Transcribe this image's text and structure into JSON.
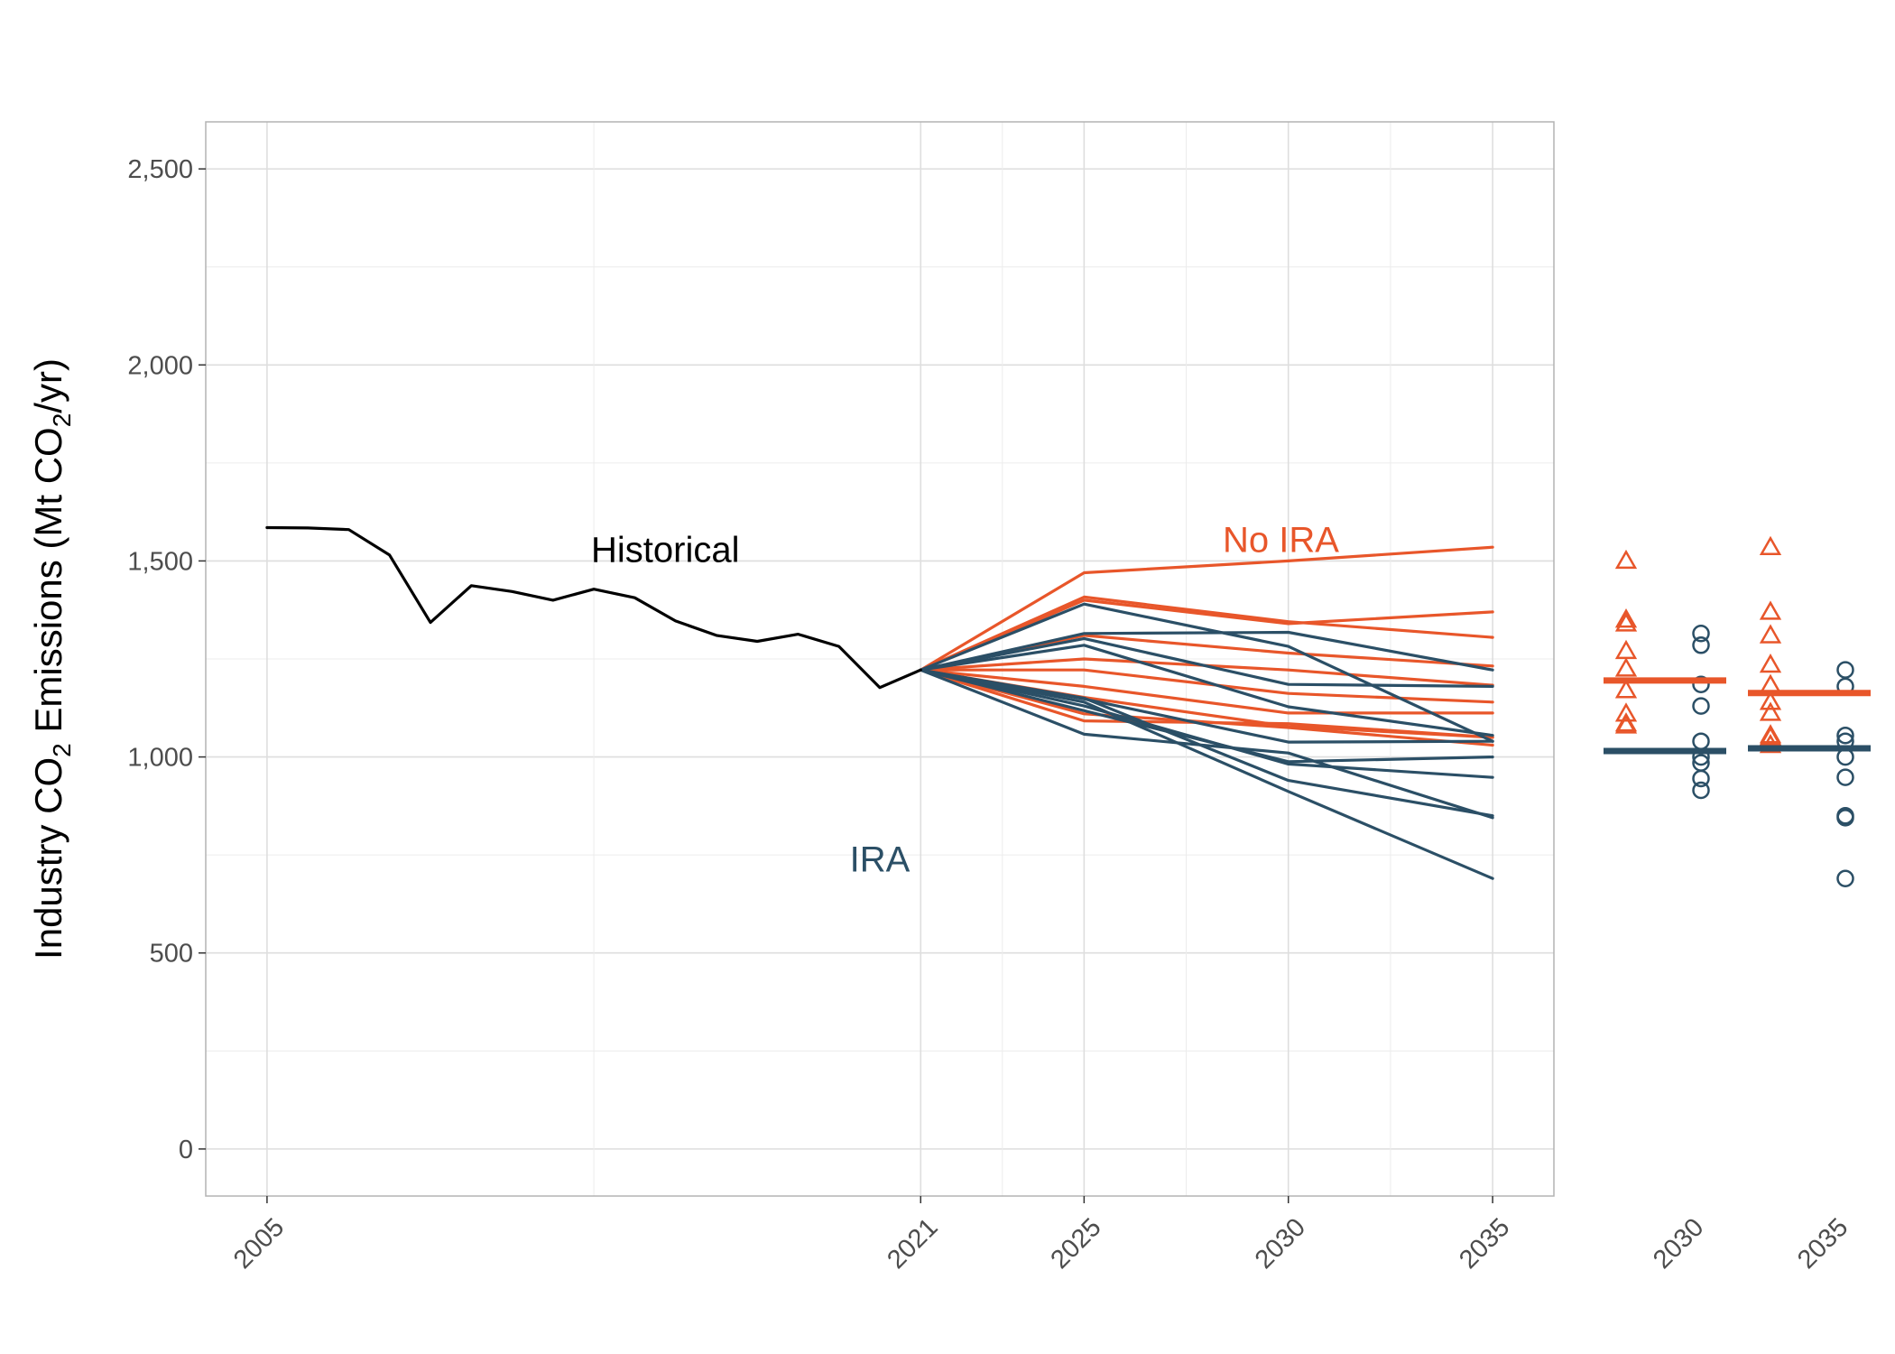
{
  "chart_data": {
    "type": "line",
    "title": "",
    "ylabel": {
      "pre": "Industry CO",
      "sub": "2",
      "mid": " Emissions (Mt CO",
      "sub2": "2",
      "post": "/yr)"
    },
    "ylim": [
      -120,
      2620
    ],
    "yticks": [
      0,
      500,
      1000,
      1500,
      2000,
      2500
    ],
    "ytick_labels": [
      "0",
      "500",
      "1,000",
      "1,500",
      "2,000",
      "2,500"
    ],
    "xlim": [
      2003.5,
      2036.5
    ],
    "xticks": [
      2005,
      2021,
      2025,
      2030,
      2035
    ],
    "xtick_labels": [
      "2005",
      "2021",
      "2025",
      "2030",
      "2035"
    ],
    "grid": true,
    "colors": {
      "historical": "#000000",
      "no_ira": "#e8562a",
      "ira": "#2b4f66"
    },
    "annotations": [
      {
        "text": "Historical",
        "x": 2007.0,
        "y": 1530,
        "series": "historical"
      },
      {
        "text": "No IRA",
        "x": 2030.0,
        "y": 1555,
        "series": "no_ira"
      },
      {
        "text": "IRA",
        "x": 2019.0,
        "y": 740,
        "series": "ira"
      }
    ],
    "historical": {
      "name": "Historical",
      "x": [
        2005,
        2006,
        2007,
        2008,
        2009,
        2010,
        2011,
        2012,
        2013,
        2014,
        2015,
        2016,
        2017,
        2018,
        2019,
        2020,
        2021
      ],
      "y": [
        1585,
        1584,
        1580,
        1515,
        1343,
        1437,
        1422,
        1400,
        1428,
        1406,
        1347,
        1310,
        1295,
        1313,
        1282,
        1177,
        1222
      ]
    },
    "scenario_x": [
      2021,
      2025,
      2030,
      2035
    ],
    "no_ira": [
      [
        1222,
        1470,
        1500,
        1535
      ],
      [
        1222,
        1408,
        1345,
        1305
      ],
      [
        1222,
        1400,
        1340,
        1370
      ],
      [
        1222,
        1310,
        1265,
        1232
      ],
      [
        1222,
        1250,
        1222,
        1183
      ],
      [
        1222,
        1222,
        1162,
        1140
      ],
      [
        1222,
        1180,
        1112,
        1112
      ],
      [
        1222,
        1152,
        1078,
        1050
      ],
      [
        1222,
        1110,
        1075,
        1030
      ],
      [
        1222,
        1092,
        1085,
        1050
      ]
    ],
    "ira": [
      [
        1222,
        1390,
        1282,
        1040
      ],
      [
        1222,
        1315,
        1318,
        1222
      ],
      [
        1222,
        1302,
        1185,
        1180
      ],
      [
        1222,
        1285,
        1128,
        1055
      ],
      [
        1222,
        1148,
        1038,
        1040
      ],
      [
        1222,
        1130,
        982,
        948
      ],
      [
        1222,
        1118,
        988,
        1000
      ],
      [
        1222,
        1150,
        940,
        850
      ],
      [
        1222,
        1140,
        912,
        690
      ],
      [
        1222,
        1058,
        1010,
        845
      ]
    ],
    "side_panels": [
      {
        "label": "2030",
        "no_ira_points": [
          1500,
          1350,
          1340,
          1270,
          1225,
          1170,
          1110,
          1085,
          1080
        ],
        "ira_points": [
          1315,
          1285,
          1185,
          1130,
          1040,
          1000,
          985,
          945,
          915
        ],
        "no_ira_median": 1195,
        "ira_median": 1015
      },
      {
        "label": "2035",
        "no_ira_points": [
          1535,
          1370,
          1310,
          1235,
          1183,
          1140,
          1112,
          1055,
          1050,
          1030
        ],
        "ira_points": [
          1222,
          1180,
          1055,
          1040,
          1000,
          948,
          850,
          845,
          690
        ],
        "no_ira_median": 1163,
        "ira_median": 1022
      }
    ]
  }
}
